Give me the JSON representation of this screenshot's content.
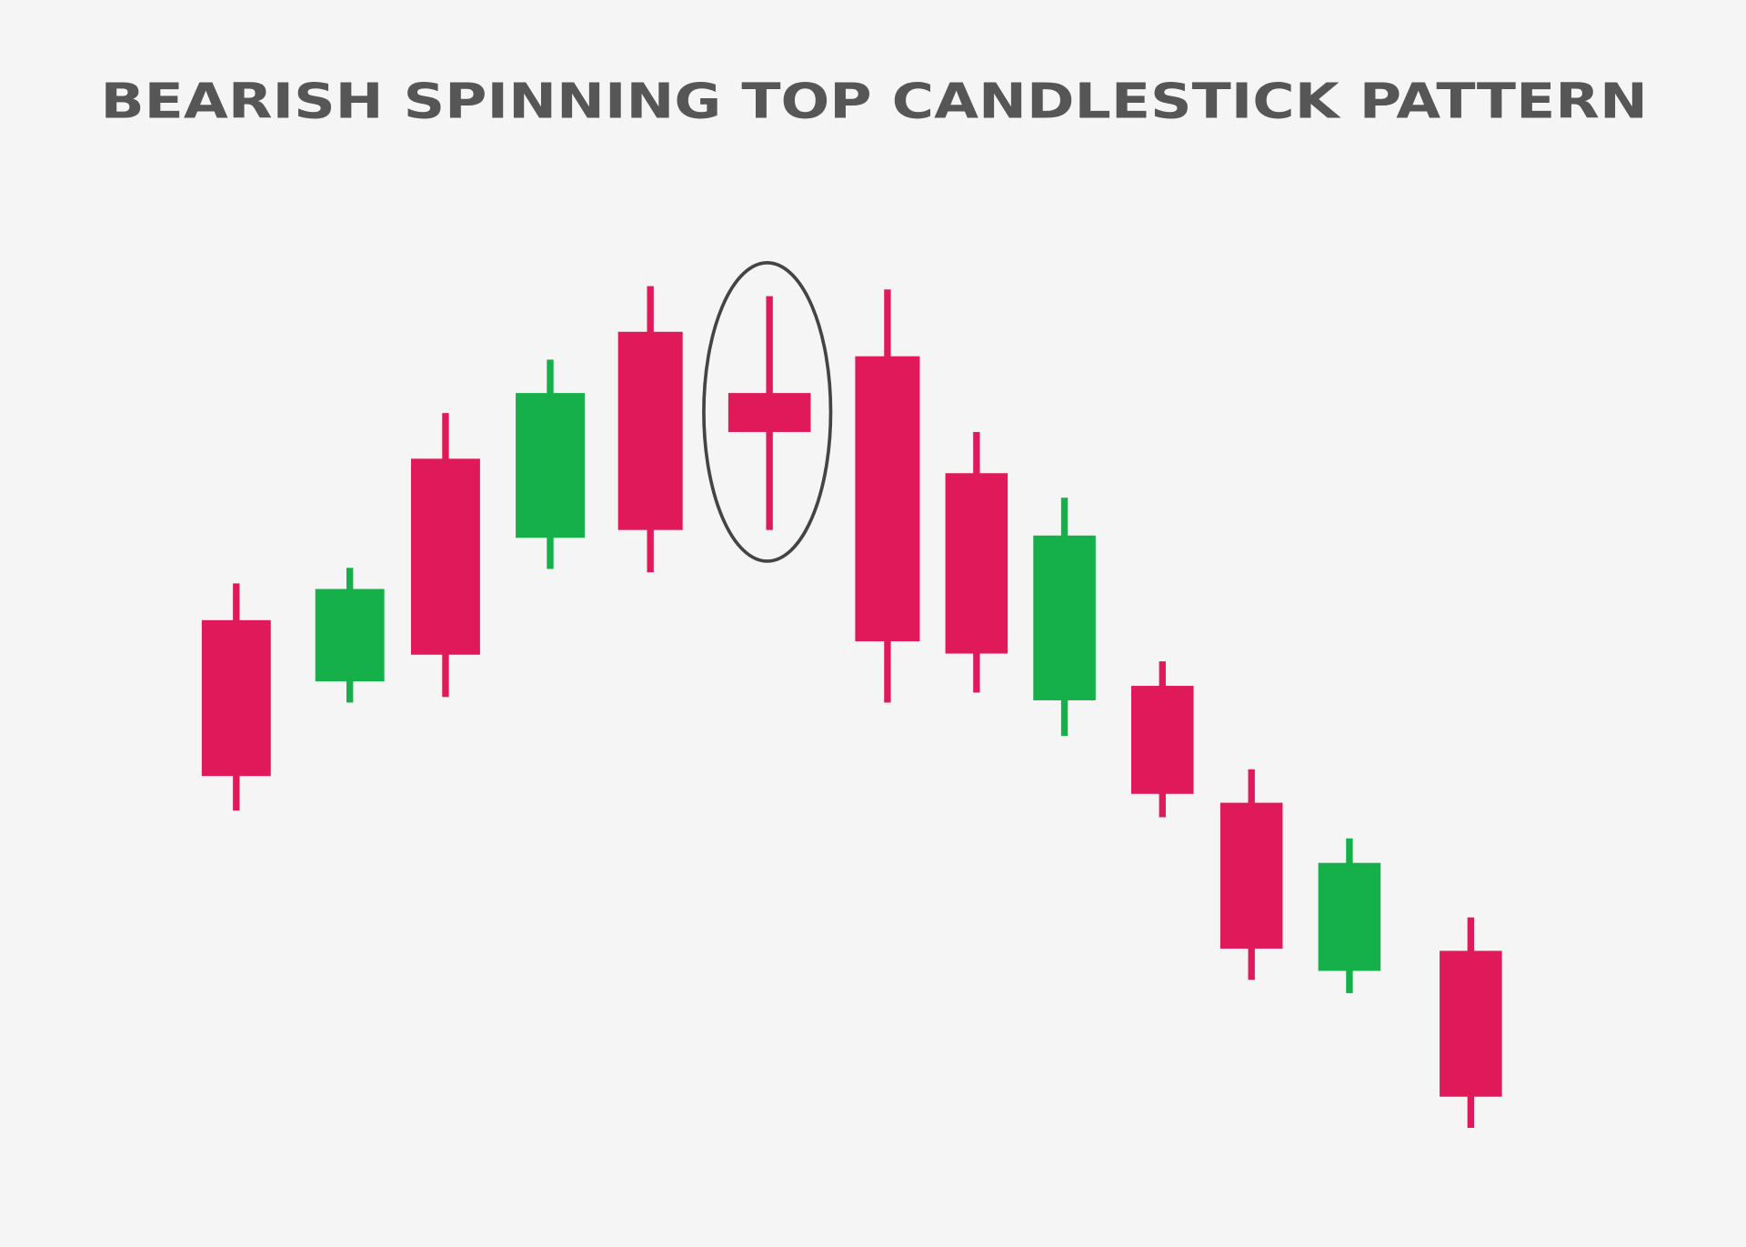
{
  "chart_data": {
    "type": "candlestick",
    "title": "BEARISH SPINNING TOP CANDLESTICK PATTERN",
    "open": [
      563,
      508,
      708,
      637,
      822,
      767,
      800,
      695,
      491,
      504,
      399,
      248,
      266
    ],
    "high": [
      596,
      610,
      749,
      797,
      863,
      854,
      860,
      732,
      673,
      526,
      429,
      367,
      296
    ],
    "low": [
      392,
      489,
      494,
      609,
      606,
      644,
      489,
      498,
      459,
      386,
      240,
      228,
      107
    ],
    "close": [
      423,
      591,
      532,
      767,
      644,
      732,
      544,
      533,
      639,
      407,
      268,
      345,
      135
    ],
    "up_color": "#15b04a",
    "down_color": "#e01a5a",
    "ylim": [
      0,
      1120
    ],
    "grid": false
  }
}
